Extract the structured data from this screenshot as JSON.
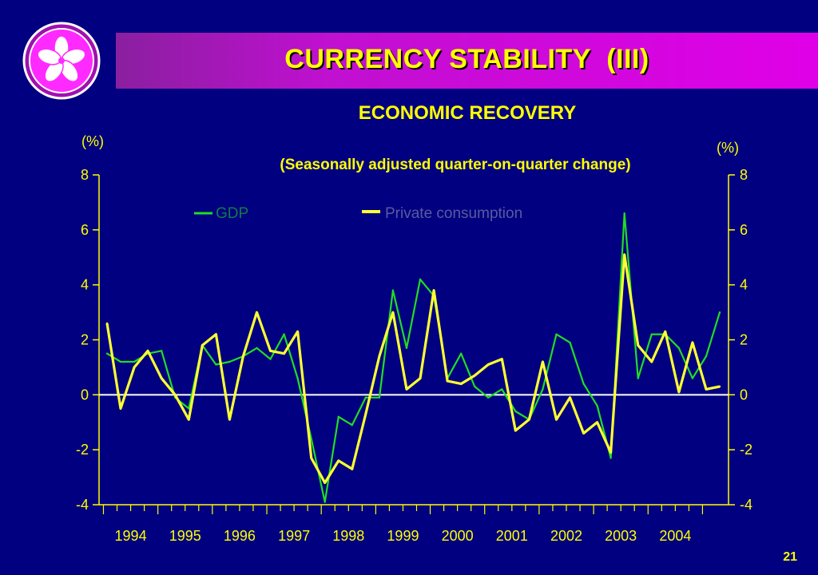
{
  "slide": {
    "title": "CURRENCY STABILITY  (III)",
    "subtitle": "ECONOMIC RECOVERY",
    "note": "(Seasonally adjusted quarter-on-quarter change)",
    "page_number": "21"
  },
  "colors": {
    "background": "#000080",
    "title_bar": "#c010d0",
    "text": "#ffff00",
    "gdp": "#22dd22",
    "private_consumption": "#ffff33",
    "zero_line": "#ffffff"
  },
  "chart_data": {
    "type": "line",
    "ylabel_left": "(%)",
    "ylabel_right": "(%)",
    "ylim": [
      -4,
      8
    ],
    "yticks": [
      8,
      6,
      4,
      2,
      0,
      -2,
      -4
    ],
    "year_labels": [
      "1994",
      "1995",
      "1996",
      "1997",
      "1998",
      "1999",
      "2000",
      "2001",
      "2002",
      "2003",
      "2004"
    ],
    "legend_placement": "top",
    "x": [
      "1994 Q1",
      "1994 Q2",
      "1994 Q3",
      "1994 Q4",
      "1995 Q1",
      "1995 Q2",
      "1995 Q3",
      "1995 Q4",
      "1996 Q1",
      "1996 Q2",
      "1996 Q3",
      "1996 Q4",
      "1997 Q1",
      "1997 Q2",
      "1997 Q3",
      "1997 Q4",
      "1998 Q1",
      "1998 Q2",
      "1998 Q3",
      "1998 Q4",
      "1999 Q1",
      "1999 Q2",
      "1999 Q3",
      "1999 Q4",
      "2000 Q1",
      "2000 Q2",
      "2000 Q3",
      "2000 Q4",
      "2001 Q1",
      "2001 Q2",
      "2001 Q3",
      "2001 Q4",
      "2002 Q1",
      "2002 Q2",
      "2002 Q3",
      "2002 Q4",
      "2003 Q1",
      "2003 Q2",
      "2003 Q3",
      "2003 Q4",
      "2004 Q1",
      "2004 Q2",
      "2004 Q3",
      "2004 Q4",
      "2005 Q1",
      "2005 Q2"
    ],
    "series": [
      {
        "name": "GDP",
        "values": [
          1.5,
          1.2,
          1.2,
          1.5,
          1.6,
          -0.1,
          -0.5,
          1.8,
          1.1,
          1.2,
          1.4,
          1.7,
          1.3,
          2.2,
          0.6,
          -1.6,
          -3.9,
          -0.8,
          -1.1,
          -0.1,
          -0.1,
          3.8,
          1.7,
          4.2,
          3.6,
          0.6,
          1.5,
          0.3,
          -0.1,
          0.2,
          -0.6,
          -0.9,
          0.2,
          2.2,
          1.9,
          0.4,
          -0.4,
          -2.3,
          6.6,
          0.6,
          2.2,
          2.2,
          1.7,
          0.6,
          1.4,
          3.0
        ]
      },
      {
        "name": "Private consumption",
        "values": [
          2.6,
          -0.5,
          1.0,
          1.6,
          0.6,
          0.0,
          -0.9,
          1.8,
          2.2,
          -0.9,
          1.4,
          3.0,
          1.6,
          1.5,
          2.3,
          -2.3,
          -3.2,
          -2.4,
          -2.7,
          -0.7,
          1.4,
          3.0,
          0.2,
          0.6,
          3.8,
          0.5,
          0.4,
          0.7,
          1.1,
          1.3,
          -1.3,
          -0.9,
          1.2,
          -0.9,
          -0.1,
          -1.4,
          -1.0,
          -2.1,
          5.1,
          1.8,
          1.2,
          2.3,
          0.1,
          1.9,
          0.2,
          0.3
        ]
      }
    ]
  }
}
